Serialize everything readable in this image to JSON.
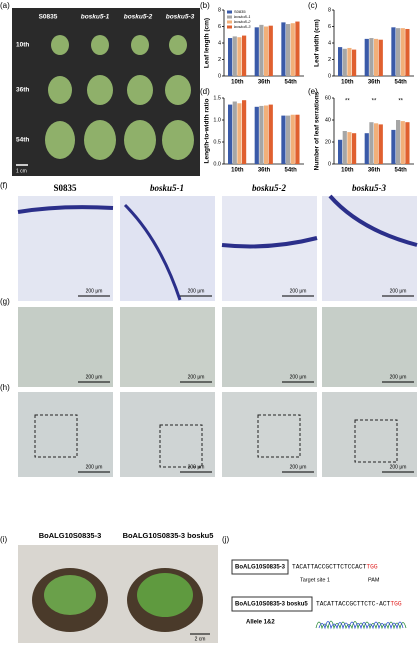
{
  "panel_labels": [
    "(a)",
    "(b)",
    "(c)",
    "(d)",
    "(e)",
    "(f)",
    "(g)",
    "(h)",
    "(i)",
    "(j)"
  ],
  "panel_a": {
    "genotypes": [
      "S0835",
      "bosku5-1",
      "bosku5-2",
      "bosku5-3"
    ],
    "stages": [
      "10th",
      "36th",
      "54th"
    ],
    "scale": "1 cm"
  },
  "panel_f": {
    "scale": "200 μm"
  },
  "panel_i": {
    "labels": [
      "BoALG10S0835-3",
      "BoALG10S0835-3 bosku5"
    ],
    "scale": "2 cm"
  },
  "panel_j": {
    "wt_label": "BoALG10S0835-3",
    "wt_seq": "TACATTACCGCTTCTCCACT",
    "wt_pam": "TGG",
    "target": "Target site 1",
    "pam": "PAM",
    "mut_label": "BoALG10S0835-3 bosku5",
    "mut_seq": "TACATTACCGCTTCTC-ACT",
    "mut_pam": "TGG",
    "allele": "Allele 1&2"
  },
  "chart_data": [
    {
      "type": "bar",
      "ylabel": "Leaf length (cm)",
      "categories": [
        "10th",
        "36th",
        "54th"
      ],
      "ylim": [
        0,
        8
      ],
      "yticks": [
        0,
        2,
        4,
        6,
        8
      ],
      "legend": "top-left",
      "series": [
        {
          "name": "S0835",
          "color": "#3a5aa8",
          "values": [
            4.6,
            5.9,
            6.5
          ]
        },
        {
          "name": "bosku5-1",
          "color": "#a6a6a6",
          "values": [
            4.8,
            6.2,
            6.3
          ]
        },
        {
          "name": "bosku5-2",
          "color": "#f2b07a",
          "values": [
            4.7,
            6.0,
            6.4
          ]
        },
        {
          "name": "bosku5-3",
          "color": "#e0602f",
          "values": [
            4.9,
            6.1,
            6.6
          ]
        }
      ]
    },
    {
      "type": "bar",
      "ylabel": "Leaf width (cm)",
      "categories": [
        "10th",
        "36th",
        "54th"
      ],
      "ylim": [
        0,
        8
      ],
      "yticks": [
        0,
        2,
        4,
        6,
        8
      ],
      "series": [
        {
          "color": "#3a5aa8",
          "values": [
            3.5,
            4.5,
            5.9
          ]
        },
        {
          "color": "#a6a6a6",
          "values": [
            3.3,
            4.6,
            5.8
          ]
        },
        {
          "color": "#f2b07a",
          "values": [
            3.4,
            4.5,
            5.8
          ]
        },
        {
          "color": "#e0602f",
          "values": [
            3.2,
            4.4,
            5.7
          ]
        }
      ]
    },
    {
      "type": "bar",
      "ylabel": "Length-to-width ratio",
      "categories": [
        "10th",
        "36th",
        "54th"
      ],
      "ylim": [
        0,
        1.5
      ],
      "yticks": [
        {
          "value": 0,
          "label": "0.0"
        },
        {
          "value": 0.5,
          "label": "0.5"
        },
        {
          "value": 1,
          "label": "1.0"
        },
        {
          "value": 1.5,
          "label": "1.5"
        }
      ],
      "series": [
        {
          "color": "#3a5aa8",
          "values": [
            1.35,
            1.3,
            1.1
          ]
        },
        {
          "color": "#a6a6a6",
          "values": [
            1.42,
            1.32,
            1.1
          ]
        },
        {
          "color": "#f2b07a",
          "values": [
            1.38,
            1.33,
            1.12
          ]
        },
        {
          "color": "#e0602f",
          "values": [
            1.45,
            1.35,
            1.12
          ]
        }
      ]
    },
    {
      "type": "bar",
      "ylabel": "Number of leaf serrations",
      "categories": [
        "10th",
        "36th",
        "54th"
      ],
      "ylim": [
        0,
        60
      ],
      "yticks": [
        0,
        20,
        40,
        60
      ],
      "annotations": [
        "**",
        "**",
        "**"
      ],
      "series": [
        {
          "color": "#3a5aa8",
          "values": [
            22,
            28,
            31
          ]
        },
        {
          "color": "#a6a6a6",
          "values": [
            30,
            38,
            40
          ]
        },
        {
          "color": "#f2b07a",
          "values": [
            29,
            37,
            39
          ]
        },
        {
          "color": "#e0602f",
          "values": [
            28,
            36,
            38
          ]
        }
      ]
    }
  ]
}
